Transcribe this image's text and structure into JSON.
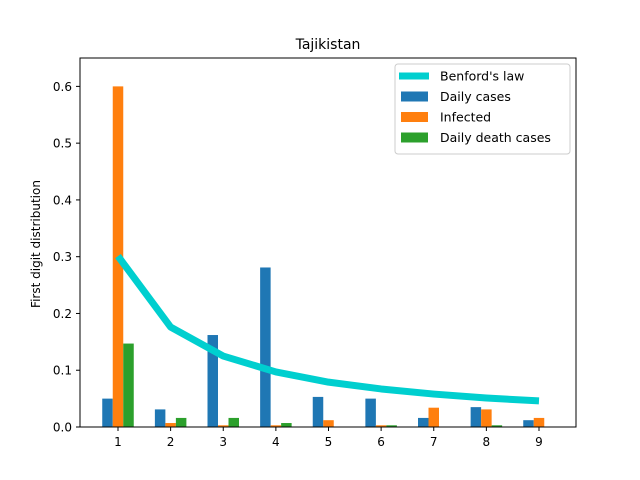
{
  "chart_data": {
    "type": "bar",
    "title": "Tajikistan",
    "xlabel": "",
    "ylabel": "First digit distribution",
    "categories": [
      "1",
      "2",
      "3",
      "4",
      "5",
      "6",
      "7",
      "8",
      "9"
    ],
    "xticks": [
      "1",
      "2",
      "3",
      "4",
      "5",
      "6",
      "7",
      "8",
      "9"
    ],
    "ylim": [
      0,
      0.65
    ],
    "yticks": [
      "0.0",
      "0.1",
      "0.2",
      "0.3",
      "0.4",
      "0.5",
      "0.6"
    ],
    "legend_position": "top-right",
    "series": [
      {
        "name": "Daily cases",
        "kind": "bar",
        "color": "#1f77b4",
        "values": [
          0.05,
          0.031,
          0.162,
          0.281,
          0.053,
          0.05,
          0.016,
          0.035,
          0.012
        ]
      },
      {
        "name": "Infected",
        "kind": "bar",
        "color": "#ff7f0e",
        "values": [
          0.6,
          0.007,
          0.003,
          0.003,
          0.012,
          0.003,
          0.034,
          0.031,
          0.016
        ]
      },
      {
        "name": "Daily death cases",
        "kind": "bar",
        "color": "#2ca02c",
        "values": [
          0.147,
          0.016,
          0.016,
          0.007,
          0.0,
          0.003,
          0.0,
          0.003,
          0.0
        ]
      }
    ],
    "line": {
      "name": "Benford's law",
      "kind": "line",
      "color": "#00cfcf",
      "values": [
        0.301,
        0.176,
        0.125,
        0.097,
        0.079,
        0.067,
        0.058,
        0.051,
        0.046
      ]
    },
    "legend_order": [
      "Benford's law",
      "Daily cases",
      "Infected",
      "Daily death cases"
    ]
  }
}
